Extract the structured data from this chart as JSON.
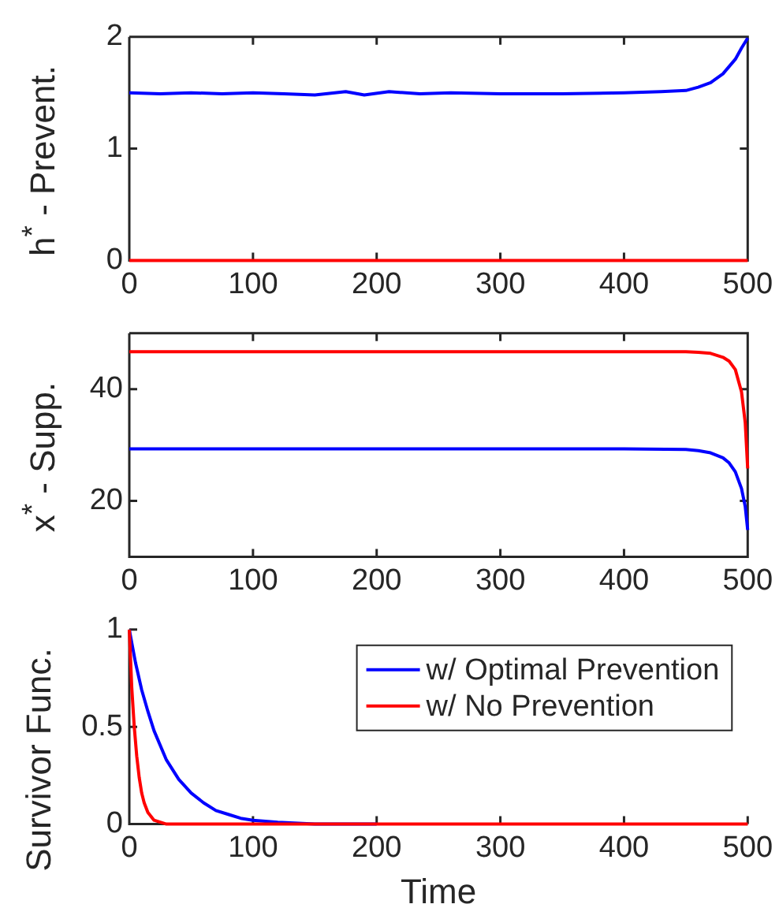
{
  "chart_data": [
    {
      "type": "line",
      "ylabel": "h$^{*}$ - Prevent.",
      "xlim": [
        0,
        500
      ],
      "xticks": [
        0,
        100,
        200,
        300,
        400,
        500
      ],
      "ylim": [
        0,
        2
      ],
      "yticks": [
        0,
        1,
        2
      ],
      "marker": "none",
      "line_style": "solid",
      "x": [
        0,
        25,
        50,
        75,
        100,
        125,
        150,
        175,
        190,
        210,
        235,
        260,
        300,
        350,
        400,
        430,
        450,
        460,
        470,
        480,
        490,
        495,
        500
      ],
      "series": [
        {
          "color": "#0000ff",
          "values": [
            1.5,
            1.49,
            1.5,
            1.49,
            1.5,
            1.49,
            1.48,
            1.51,
            1.48,
            1.51,
            1.49,
            1.5,
            1.49,
            1.49,
            1.5,
            1.51,
            1.52,
            1.55,
            1.59,
            1.67,
            1.8,
            1.9,
            1.99
          ]
        },
        {
          "color": "#ff0000",
          "values": [
            0,
            0,
            0,
            0,
            0,
            0,
            0,
            0,
            0,
            0,
            0,
            0,
            0,
            0,
            0,
            0,
            0,
            0,
            0,
            0,
            0,
            0,
            0
          ]
        }
      ]
    },
    {
      "type": "line",
      "ylabel": "x$^{*}$ - Supp.",
      "xlim": [
        0,
        500
      ],
      "xticks": [
        0,
        100,
        200,
        300,
        400,
        500
      ],
      "ylim": [
        10,
        50
      ],
      "yticks": [
        20,
        40
      ],
      "marker": "none",
      "line_style": "solid",
      "x": [
        0,
        100,
        200,
        300,
        400,
        450,
        460,
        470,
        480,
        485,
        490,
        495,
        498,
        500
      ],
      "series": [
        {
          "color": "#0000ff",
          "values": [
            29.3,
            29.3,
            29.3,
            29.3,
            29.3,
            29.2,
            29.0,
            28.6,
            27.7,
            26.8,
            25.2,
            22.2,
            19.0,
            14.8
          ]
        },
        {
          "color": "#ff0000",
          "values": [
            46.7,
            46.7,
            46.7,
            46.7,
            46.7,
            46.7,
            46.6,
            46.4,
            45.7,
            45.0,
            43.5,
            39.5,
            34.0,
            25.8
          ]
        }
      ]
    },
    {
      "type": "line",
      "xlabel": "Time",
      "ylabel": "Survivor Func.",
      "xlim": [
        0,
        500
      ],
      "xticks": [
        0,
        100,
        200,
        300,
        400,
        500
      ],
      "ylim": [
        0,
        1
      ],
      "yticks": [
        0,
        0.5,
        1
      ],
      "marker": "none",
      "line_style": "solid",
      "legend": "top right",
      "series": [
        {
          "name": "w/ Optimal Prevention",
          "color": "#0000ff",
          "x": [
            0,
            5,
            10,
            15,
            20,
            30,
            40,
            50,
            60,
            70,
            80,
            90,
            100,
            120,
            150,
            200
          ],
          "values": [
            1,
            0.83,
            0.69,
            0.58,
            0.48,
            0.33,
            0.23,
            0.16,
            0.11,
            0.07,
            0.05,
            0.03,
            0.02,
            0.01,
            0,
            0
          ]
        },
        {
          "name": "w/ No Prevention",
          "color": "#ff0000",
          "x": [
            0,
            2,
            4,
            6,
            8,
            10,
            12,
            15,
            20,
            25,
            30,
            100,
            200,
            300,
            400,
            500
          ],
          "values": [
            1,
            0.7,
            0.5,
            0.35,
            0.24,
            0.16,
            0.11,
            0.06,
            0.02,
            0.01,
            0,
            0,
            0,
            0,
            0,
            0
          ]
        }
      ]
    }
  ]
}
